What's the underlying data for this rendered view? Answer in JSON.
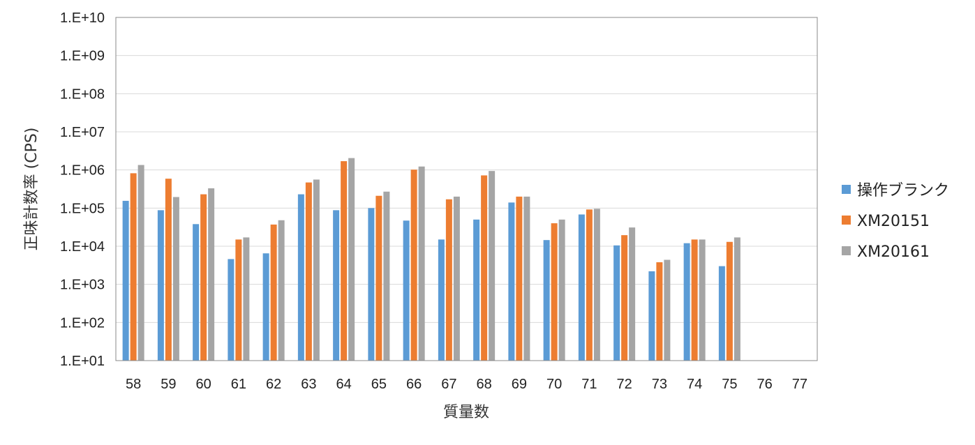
{
  "chart_data": {
    "type": "bar",
    "title": "",
    "xlabel": "質量数",
    "ylabel": "正味計数率 (CPS)",
    "yscale": "log",
    "ylim": [
      10,
      10000000000
    ],
    "yticks": [
      "1.E+01",
      "1.E+02",
      "1.E+03",
      "1.E+04",
      "1.E+05",
      "1.E+06",
      "1.E+07",
      "1.E+08",
      "1.E+09",
      "1.E+10"
    ],
    "grid": true,
    "legend_position": "right",
    "categories": [
      "58",
      "59",
      "60",
      "61",
      "62",
      "63",
      "64",
      "65",
      "66",
      "67",
      "68",
      "69",
      "70",
      "71",
      "72",
      "73",
      "74",
      "75",
      "76",
      "77"
    ],
    "series": [
      {
        "name": "操作ブランク",
        "color": "#5b9bd5",
        "values": [
          155000,
          88000,
          38000,
          4600,
          6500,
          230000,
          88000,
          100000,
          47000,
          15000,
          50000,
          140000,
          14500,
          68000,
          10500,
          2200,
          12000,
          3000,
          null,
          null
        ]
      },
      {
        "name": "XM20151",
        "color": "#ed7d31",
        "values": [
          820000,
          590000,
          230000,
          15000,
          37000,
          470000,
          1700000,
          210000,
          1020000,
          170000,
          720000,
          200000,
          40000,
          92000,
          19500,
          3800,
          15000,
          13000,
          null,
          null
        ]
      },
      {
        "name": "XM20161",
        "color": "#a5a5a5",
        "values": [
          1350000,
          195000,
          330000,
          17000,
          48000,
          560000,
          2050000,
          270000,
          1230000,
          200000,
          940000,
          200000,
          50000,
          96000,
          31000,
          4400,
          15000,
          17000,
          null,
          null
        ]
      }
    ]
  }
}
